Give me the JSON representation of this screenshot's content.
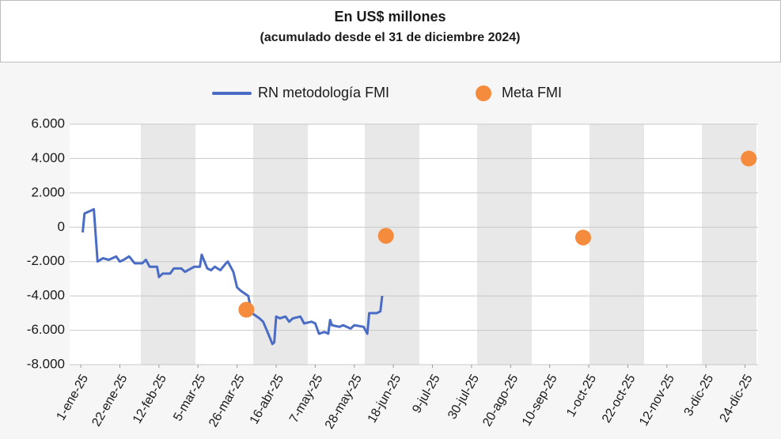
{
  "chart_data": {
    "type": "line",
    "title": "En US$ millones",
    "subtitle": "(acumulado desde el 31 de diciembre 2024)",
    "legend": "top",
    "grid": true,
    "xlim": [
      "2024-12-26",
      "2025-12-31"
    ],
    "xticks": [
      {
        "value": "2025-01-01",
        "label": "1-ene-25"
      },
      {
        "value": "2025-01-22",
        "label": "22-ene-25"
      },
      {
        "value": "2025-02-12",
        "label": "12-feb-25"
      },
      {
        "value": "2025-03-05",
        "label": "5-mar-25"
      },
      {
        "value": "2025-03-26",
        "label": "26-mar-25"
      },
      {
        "value": "2025-04-16",
        "label": "16-abr-25"
      },
      {
        "value": "2025-05-07",
        "label": "7-may-25"
      },
      {
        "value": "2025-05-28",
        "label": "28-may-25"
      },
      {
        "value": "2025-06-18",
        "label": "18-jun-25"
      },
      {
        "value": "2025-07-09",
        "label": "9-jul-25"
      },
      {
        "value": "2025-07-30",
        "label": "30-jul-25"
      },
      {
        "value": "2025-08-20",
        "label": "20-ago-25"
      },
      {
        "value": "2025-09-10",
        "label": "10-sep-25"
      },
      {
        "value": "2025-10-01",
        "label": "1-oct-25"
      },
      {
        "value": "2025-10-22",
        "label": "22-oct-25"
      },
      {
        "value": "2025-11-12",
        "label": "12-nov-25"
      },
      {
        "value": "2025-12-03",
        "label": "3-dic-25"
      },
      {
        "value": "2025-12-24",
        "label": "24-dic-25"
      }
    ],
    "ylim": [
      -8000,
      6000
    ],
    "yticks": [
      {
        "value": 6000,
        "label": "6.000"
      },
      {
        "value": 4000,
        "label": "4.000"
      },
      {
        "value": 2000,
        "label": "2.000"
      },
      0,
      {
        "value": -2000,
        "label": "-2.000"
      },
      {
        "value": -4000,
        "label": "-4.000"
      },
      {
        "value": -6000,
        "label": "-6.000"
      },
      {
        "value": -8000,
        "label": "-8.000"
      }
    ],
    "series": [
      {
        "name": "RN metodología FMI",
        "type": "line",
        "color": "#4a6cc4",
        "x": [
          "2025-01-02",
          "2025-01-03",
          "2025-01-06",
          "2025-01-08",
          "2025-01-10",
          "2025-01-13",
          "2025-01-16",
          "2025-01-20",
          "2025-01-22",
          "2025-01-24",
          "2025-01-27",
          "2025-01-30",
          "2025-02-03",
          "2025-02-05",
          "2025-02-07",
          "2025-02-11",
          "2025-02-12",
          "2025-02-14",
          "2025-02-18",
          "2025-02-20",
          "2025-02-24",
          "2025-02-26",
          "2025-03-03",
          "2025-03-06",
          "2025-03-07",
          "2025-03-10",
          "2025-03-12",
          "2025-03-14",
          "2025-03-17",
          "2025-03-20",
          "2025-03-21",
          "2025-03-24",
          "2025-03-26",
          "2025-03-28",
          "2025-04-01",
          "2025-04-03",
          "2025-04-07",
          "2025-04-09",
          "2025-04-11",
          "2025-04-14",
          "2025-04-15",
          "2025-04-16",
          "2025-04-18",
          "2025-04-21",
          "2025-04-23",
          "2025-04-25",
          "2025-04-29",
          "2025-05-01",
          "2025-05-05",
          "2025-05-07",
          "2025-05-09",
          "2025-05-12",
          "2025-05-14",
          "2025-05-15",
          "2025-05-16",
          "2025-05-20",
          "2025-05-22",
          "2025-05-26",
          "2025-05-28",
          "2025-06-02",
          "2025-06-04",
          "2025-06-05",
          "2025-06-09",
          "2025-06-11",
          "2025-06-12"
        ],
        "values": [
          -300,
          800,
          950,
          1050,
          -2000,
          -1800,
          -1900,
          -1700,
          -2000,
          -1900,
          -1700,
          -2100,
          -2100,
          -1900,
          -2300,
          -2300,
          -2900,
          -2700,
          -2700,
          -2400,
          -2400,
          -2600,
          -2300,
          -2300,
          -1600,
          -2400,
          -2500,
          -2300,
          -2500,
          -2100,
          -2000,
          -2600,
          -3500,
          -3700,
          -4000,
          -5000,
          -5300,
          -5500,
          -6000,
          -6800,
          -6700,
          -5200,
          -5300,
          -5200,
          -5500,
          -5300,
          -5200,
          -5600,
          -5500,
          -5600,
          -6200,
          -6100,
          -6200,
          -5400,
          -5700,
          -5800,
          -5700,
          -5900,
          -5700,
          -5800,
          -6200,
          -5000,
          -5000,
          -4900,
          -4000
        ]
      },
      {
        "name": "Meta FMI",
        "type": "scatter",
        "color": "#f58b3c",
        "x": [
          "2025-03-31",
          "2025-06-14",
          "2025-09-28",
          "2025-12-26"
        ],
        "values": [
          -4800,
          -500,
          -600,
          4000
        ]
      }
    ]
  }
}
